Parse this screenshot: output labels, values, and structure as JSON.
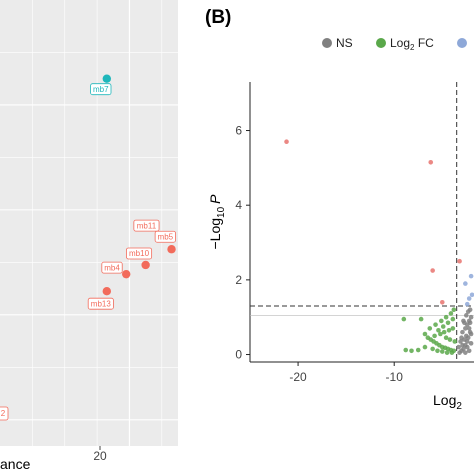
{
  "left_panel": {
    "partial_axis_label": "ance",
    "x_tick": "20",
    "partial_label": "2"
  },
  "right_panel": {
    "tag": "(B)",
    "y_ticks": [
      "0",
      "2",
      "4",
      "6"
    ],
    "x_ticks": [
      "-20",
      "-10"
    ],
    "y_axis_label": {
      "prefix": "−Log",
      "subscript": "10",
      "var": "P"
    },
    "x_axis_label": {
      "prefix": "Log",
      "subscript": "2"
    },
    "legend": [
      {
        "label": "NS",
        "color": "#808080"
      },
      {
        "label": "Log",
        "sub": "2",
        "suffix": " FC",
        "color": "#5aa84a"
      },
      {
        "label": "",
        "color": "#8ea8d8"
      }
    ]
  },
  "chart_data": [
    {
      "type": "scatter",
      "panel": "A",
      "xlabel": "",
      "ylabel": "",
      "xlim": [
        0,
        27.5
      ],
      "ylim": [
        0,
        17
      ],
      "x_ticks": [
        20
      ],
      "points": [
        {
          "label": "mb7",
          "x": 16.5,
          "y": 14.0,
          "color": "#1fb7bb"
        },
        {
          "label": "mb11",
          "x": 25.5,
          "y": 8.0,
          "color": "#f26b5b"
        },
        {
          "label": "mb5",
          "x": 26.5,
          "y": 7.5,
          "color": "#f26b5b"
        },
        {
          "label": "mb10",
          "x": 22.5,
          "y": 6.9,
          "color": "#f26b5b"
        },
        {
          "label": "mb4",
          "x": 19.5,
          "y": 6.55,
          "color": "#f26b5b"
        },
        {
          "label": "mb13",
          "x": 16.5,
          "y": 5.9,
          "color": "#f26b5b"
        }
      ]
    },
    {
      "type": "scatter",
      "panel": "B",
      "xlim": [
        -25,
        -1.7
      ],
      "ylim": [
        -0.2,
        7.3
      ],
      "x_ticks": [
        -20,
        -10
      ],
      "y_ticks": [
        0,
        2,
        4,
        6
      ],
      "hline": 1.3,
      "vline": -3.5,
      "series": [
        {
          "name": "NS",
          "color": "#808080",
          "points": [
            [
              -3.2,
              0.05
            ],
            [
              -3.0,
              0.1
            ],
            [
              -2.8,
              0.15
            ],
            [
              -2.6,
              0.05
            ],
            [
              -2.4,
              0.2
            ],
            [
              -2.2,
              0.1
            ],
            [
              -2.0,
              0.3
            ],
            [
              -3.1,
              0.35
            ],
            [
              -2.7,
              0.4
            ],
            [
              -2.5,
              0.5
            ],
            [
              -2.3,
              0.45
            ],
            [
              -2.1,
              0.6
            ],
            [
              -2.9,
              0.6
            ],
            [
              -2.6,
              0.7
            ],
            [
              -2.4,
              0.8
            ],
            [
              -2.2,
              0.9
            ],
            [
              -2.0,
              1.0
            ],
            [
              -2.8,
              0.9
            ],
            [
              -2.5,
              1.05
            ],
            [
              -2.3,
              1.15
            ],
            [
              -2.1,
              1.2
            ],
            [
              -2.6,
              0.25
            ],
            [
              -3.3,
              0.2
            ],
            [
              -2.0,
              0.55
            ],
            [
              -2.4,
              0.35
            ],
            [
              -2.2,
              0.7
            ],
            [
              -3.0,
              0.45
            ],
            [
              -2.7,
              0.85
            ],
            [
              -2.9,
              0.25
            ],
            [
              -2.1,
              0.85
            ]
          ]
        },
        {
          "name": "Log2 FC",
          "color": "#5aa84a",
          "points": [
            [
              -9.0,
              0.95
            ],
            [
              -7.2,
              0.95
            ],
            [
              -6.8,
              0.55
            ],
            [
              -6.5,
              0.45
            ],
            [
              -6.2,
              0.4
            ],
            [
              -5.9,
              0.35
            ],
            [
              -5.6,
              0.3
            ],
            [
              -5.3,
              0.25
            ],
            [
              -5.0,
              0.2
            ],
            [
              -4.7,
              0.18
            ],
            [
              -4.4,
              0.15
            ],
            [
              -4.1,
              0.12
            ],
            [
              -3.8,
              0.1
            ],
            [
              -6.0,
              0.15
            ],
            [
              -5.5,
              0.1
            ],
            [
              -5.0,
              0.08
            ],
            [
              -4.5,
              0.05
            ],
            [
              -4.0,
              0.05
            ],
            [
              -6.8,
              0.2
            ],
            [
              -7.5,
              0.12
            ],
            [
              -8.2,
              0.1
            ],
            [
              -8.8,
              0.12
            ],
            [
              -5.8,
              0.5
            ],
            [
              -5.2,
              0.55
            ],
            [
              -4.8,
              0.6
            ],
            [
              -4.3,
              0.65
            ],
            [
              -3.9,
              0.7
            ],
            [
              -4.6,
              0.45
            ],
            [
              -4.2,
              0.4
            ],
            [
              -3.7,
              0.35
            ],
            [
              -5.4,
              0.65
            ],
            [
              -4.9,
              0.75
            ],
            [
              -4.4,
              0.85
            ],
            [
              -3.9,
              0.95
            ],
            [
              -6.3,
              0.7
            ],
            [
              -5.7,
              0.8
            ],
            [
              -5.1,
              0.9
            ],
            [
              -4.6,
              1.0
            ],
            [
              -4.1,
              1.1
            ],
            [
              -3.8,
              1.2
            ]
          ]
        },
        {
          "name": "",
          "color": "#8ea8d8",
          "points": [
            [
              -2.6,
              1.9
            ],
            [
              -2.2,
              1.5
            ],
            [
              -1.9,
              1.6
            ],
            [
              -2.4,
              1.35
            ],
            [
              -2.0,
              2.1
            ]
          ]
        },
        {
          "name": "",
          "color": "#e8736e",
          "points": [
            [
              -21.2,
              5.7
            ],
            [
              -6.2,
              5.15
            ],
            [
              -6.0,
              2.25
            ],
            [
              -5.0,
              1.4
            ],
            [
              -3.2,
              2.5
            ]
          ]
        }
      ]
    }
  ]
}
